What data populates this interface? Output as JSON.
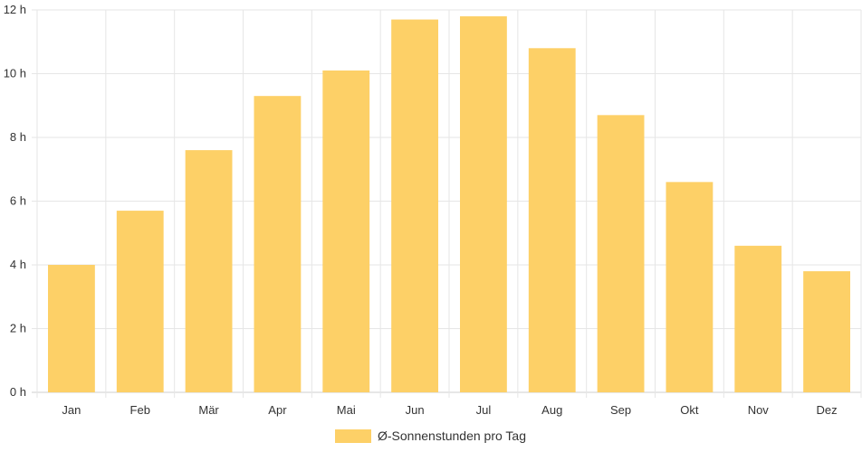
{
  "chart_data": {
    "type": "bar",
    "categories": [
      "Jan",
      "Feb",
      "Mär",
      "Apr",
      "Mai",
      "Jun",
      "Jul",
      "Aug",
      "Sep",
      "Okt",
      "Nov",
      "Dez"
    ],
    "series": [
      {
        "name": "Ø-Sonnenstunden pro Tag",
        "values": [
          4.0,
          5.7,
          7.6,
          9.3,
          10.1,
          11.7,
          11.8,
          10.8,
          8.7,
          6.6,
          4.6,
          3.8
        ]
      }
    ],
    "ylim": [
      0,
      12
    ],
    "y_ticks": [
      "0 h",
      "2 h",
      "4 h",
      "6 h",
      "8 h",
      "10 h",
      "12 h"
    ],
    "grid": true,
    "legend_position": "bottom",
    "colors": {
      "bar": "#fdd067",
      "grid": "#e6e6e6",
      "text": "#333333"
    }
  }
}
